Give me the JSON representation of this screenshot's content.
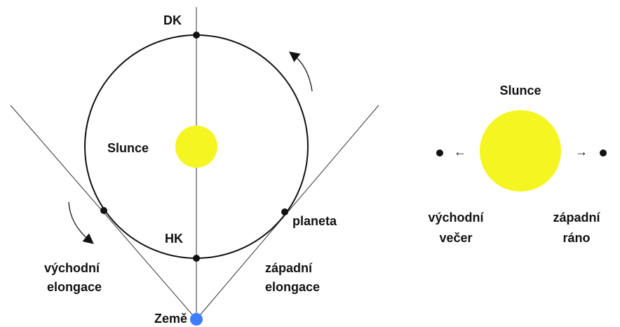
{
  "left": {
    "top_label": "DK",
    "sun_label": "Slunce",
    "bottom_label": "HK",
    "planet_label": "planeta",
    "west_label": [
      "západní",
      "elongace"
    ],
    "east_label": [
      "východní",
      "elongace"
    ],
    "earth_label": "Země"
  },
  "right": {
    "sun_label": "Slunce",
    "east_label": [
      "východní",
      "večer"
    ],
    "west_label": [
      "západní",
      "ráno"
    ],
    "arrow_left": "←",
    "arrow_right": "→"
  }
}
